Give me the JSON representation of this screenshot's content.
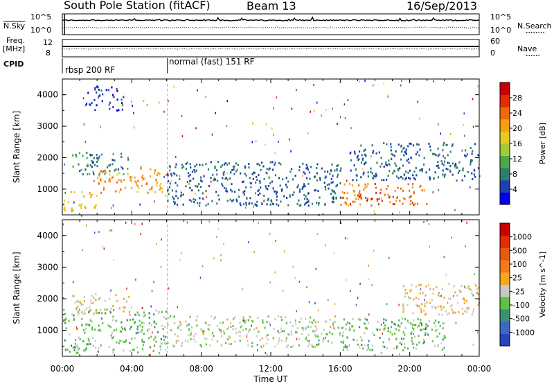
{
  "header": {
    "station": "South Pole Station (fitACF)",
    "beam": "Beam 13",
    "date": "16/Sep/2013"
  },
  "small_panels": {
    "nsky_label": "N.Sky",
    "nsearch_label": "N.Search",
    "nsky_ticks": [
      "10^5",
      "10^0"
    ],
    "nsearch_ticks": [
      "10^5",
      "10^0"
    ],
    "freq_label": "Freq.",
    "freq_unit": "[MHz]",
    "freq_ticks": [
      "12",
      "8"
    ],
    "nave_label": "Nave",
    "nave_ticks": [
      "60",
      "0"
    ],
    "cpid_label": "CPID",
    "cpid_segments": [
      {
        "label": "rbsp 200 RF",
        "start_hour": 0.0
      },
      {
        "label": "normal (fast) 151 RF",
        "start_hour": 6.05
      }
    ]
  },
  "colors": {
    "power_scale": [
      "#0000ee",
      "#1f3fb0",
      "#2e7d6a",
      "#4ea84a",
      "#a6c93a",
      "#e6cc20",
      "#f59f12",
      "#f06a0a",
      "#e02d06",
      "#cc0000"
    ],
    "velocity_scale": [
      "#2846b8",
      "#3c68c2",
      "#3e8f72",
      "#5dc23e",
      "#c8c8c8",
      "#f5a623",
      "#f07d18",
      "#e85a10",
      "#e02d06",
      "#cc0000"
    ]
  },
  "chart_data": [
    {
      "type": "heatmap",
      "title": "",
      "xlabel": "Time UT",
      "ylabel": "Slant Range [km]",
      "xlim": [
        "00:00",
        "24:00"
      ],
      "ylim": [
        180,
        4500
      ],
      "x_ticks": [
        "00:00",
        "04:00",
        "08:00",
        "12:00",
        "16:00",
        "20:00",
        "00:00"
      ],
      "y_ticks": [
        "1000",
        "2000",
        "3000",
        "4000"
      ],
      "colorbar": {
        "label": "Power [dB]",
        "ticks": [
          "4",
          "8",
          "12",
          "16",
          "20",
          "24",
          "28"
        ],
        "range": [
          0,
          30
        ]
      },
      "echo_regions": [
        {
          "t_start": 0.0,
          "t_end": 2.0,
          "r_start": 300,
          "r_end": 1000,
          "value": 18
        },
        {
          "t_start": 0.5,
          "t_end": 3.8,
          "r_start": 1500,
          "r_end": 2200,
          "value": 8
        },
        {
          "t_start": 1.2,
          "t_end": 3.5,
          "r_start": 3500,
          "r_end": 4300,
          "value": 4
        },
        {
          "t_start": 2.0,
          "t_end": 6.0,
          "r_start": 900,
          "r_end": 1700,
          "value": 20
        },
        {
          "t_start": 6.0,
          "t_end": 16.0,
          "r_start": 500,
          "r_end": 1900,
          "value": 6
        },
        {
          "t_start": 16.0,
          "t_end": 21.0,
          "r_start": 500,
          "r_end": 1200,
          "value": 22
        },
        {
          "t_start": 17.0,
          "t_end": 18.6,
          "r_start": 550,
          "r_end": 900,
          "value": 28
        },
        {
          "t_start": 16.5,
          "t_end": 24.0,
          "r_start": 1300,
          "r_end": 2500,
          "value": 6
        }
      ]
    },
    {
      "type": "heatmap",
      "title": "",
      "xlabel": "Time UT",
      "ylabel": "Slant Range [km]",
      "xlim": [
        "00:00",
        "24:00"
      ],
      "ylim": [
        180,
        4500
      ],
      "x_ticks": [
        "00:00",
        "04:00",
        "08:00",
        "12:00",
        "16:00",
        "20:00",
        "00:00"
      ],
      "y_ticks": [
        "1000",
        "2000",
        "3000",
        "4000"
      ],
      "colorbar": {
        "label": "Velocity [m s^-1]",
        "ticks": [
          "1000",
          "500",
          "100",
          "25",
          "-25",
          "-100",
          "-500",
          "-1000"
        ],
        "range": [
          -1000,
          1000
        ]
      },
      "echo_regions": [
        {
          "t_start": 0.0,
          "t_end": 6.0,
          "r_start": 300,
          "r_end": 1700,
          "value": -300
        },
        {
          "t_start": 0.5,
          "t_end": 4.0,
          "r_start": 1500,
          "r_end": 2200,
          "value": 0
        },
        {
          "t_start": 6.0,
          "t_end": 16.0,
          "r_start": 500,
          "r_end": 1500,
          "value": -150
        },
        {
          "t_start": 16.0,
          "t_end": 22.0,
          "r_start": 400,
          "r_end": 1400,
          "value": -300
        },
        {
          "t_start": 19.5,
          "t_end": 24.0,
          "r_start": 1500,
          "r_end": 2500,
          "value": 0
        }
      ]
    }
  ]
}
